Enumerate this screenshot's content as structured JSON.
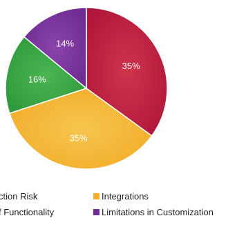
{
  "chart_data": {
    "type": "pie",
    "categories": [
      "Security Risk",
      "Integrations",
      "Lack of Functionality",
      "Limitations in Customization"
    ],
    "legend_visible_text": [
      "ction Risk",
      "Integrations",
      "f Functionality",
      "Limitations in Customization"
    ],
    "values": [
      35,
      35,
      16,
      14
    ],
    "data_labels": [
      "35%",
      "35%",
      "16%",
      "14%"
    ],
    "colors": [
      "#b0173a",
      "#f2ad2a",
      "#2f9a3d",
      "#6f2c91"
    ],
    "legend_placement": "bottom",
    "start_angle_deg": 0,
    "direction": "clockwise"
  }
}
